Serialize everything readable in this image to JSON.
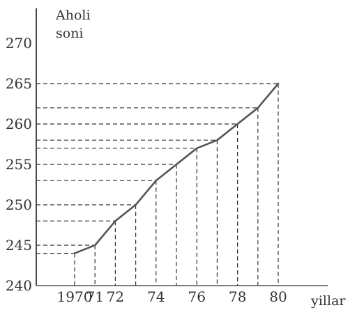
{
  "chart_data": {
    "type": "line",
    "ylabel": [
      "Aholi",
      "soni"
    ],
    "xlabel": "yillar",
    "ylim": [
      240,
      270
    ],
    "xlim": [
      1970,
      1980
    ],
    "y_ticks": [
      "240",
      "245",
      "250",
      "255",
      "260",
      "265",
      "270"
    ],
    "x_ticks": [
      {
        "value": 1970,
        "label": "1970"
      },
      {
        "value": 1971,
        "label": "71"
      },
      {
        "value": 1972,
        "label": "72"
      },
      {
        "value": 1974,
        "label": "74"
      },
      {
        "value": 1976,
        "label": "76"
      },
      {
        "value": 1978,
        "label": "78"
      },
      {
        "value": 1980,
        "label": "80"
      }
    ],
    "series": [
      {
        "x": [
          1970,
          1971,
          1972,
          1973,
          1974,
          1975,
          1976,
          1977,
          1978,
          1979,
          1980
        ],
        "values": [
          244,
          245,
          248,
          250,
          253,
          255,
          257,
          258,
          260,
          262,
          265
        ]
      }
    ],
    "line_color": "#555555",
    "grid": false
  }
}
